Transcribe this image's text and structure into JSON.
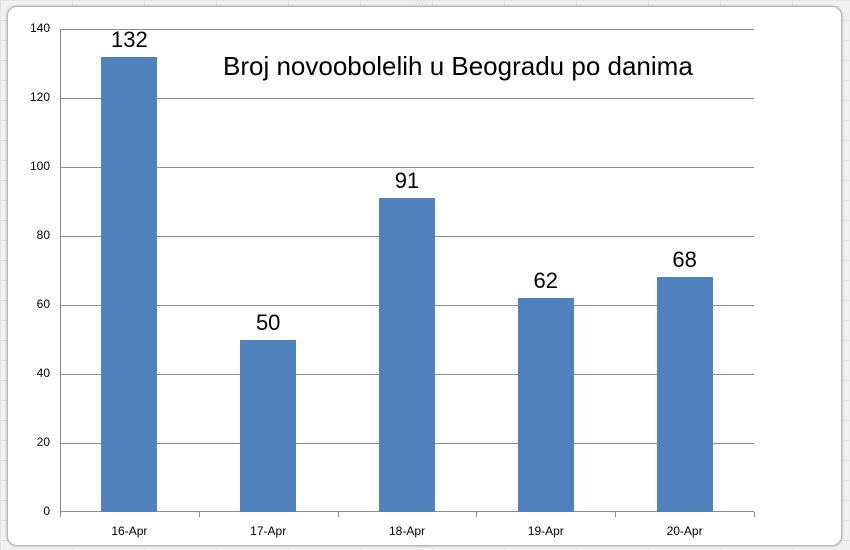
{
  "chart_data": {
    "type": "bar",
    "title": "Broj novoobolelih u Beogradu po danima",
    "categories": [
      "16-Apr",
      "17-Apr",
      "18-Apr",
      "19-Apr",
      "20-Apr"
    ],
    "values": [
      132,
      50,
      91,
      62,
      68
    ],
    "data_labels": [
      "132",
      "50",
      "91",
      "62",
      "68"
    ],
    "xlabel": "",
    "ylabel": "",
    "ylim": [
      0,
      140
    ],
    "yticks": [
      "0",
      "20",
      "40",
      "60",
      "80",
      "100",
      "120",
      "140"
    ],
    "grid": true,
    "legend": "none",
    "bar_color": "#4f81bd"
  }
}
